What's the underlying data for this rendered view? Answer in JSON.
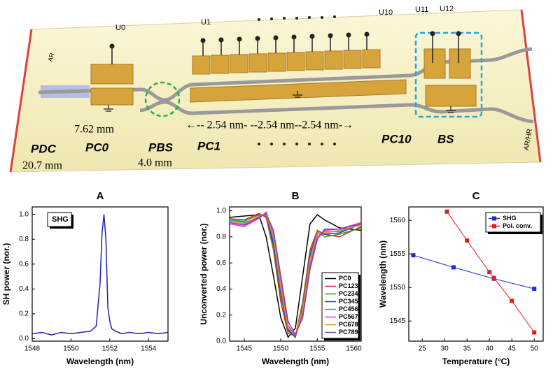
{
  "diagram": {
    "electrodes": [
      "U0",
      "U1",
      "U10",
      "U11",
      "U12"
    ],
    "facets": [
      "AR",
      "AR/HR"
    ],
    "sections": [
      "PDC",
      "PC0",
      "PBS",
      "PC1",
      "PC10",
      "BS"
    ],
    "lengths": [
      "7.62 mm",
      "20.7 mm",
      "4.0 mm"
    ],
    "period": "←-- 2.54  nm- --2.54  nm--2.54  nm-→"
  },
  "chart_data": [
    {
      "type": "line",
      "title": "A",
      "xlabel": "Wavelength (nm)",
      "ylabel": "SH power (nor.)",
      "x": [
        1548,
        1548.5,
        1549,
        1549.5,
        1550,
        1550.5,
        1551,
        1551.3,
        1551.5,
        1551.6,
        1551.7,
        1551.8,
        1551.9,
        1552.0,
        1552.1,
        1552.3,
        1552.6,
        1553,
        1553.5,
        1554,
        1554.5,
        1555
      ],
      "series": [
        {
          "name": "SHG",
          "color": "#1f23b0",
          "values": [
            0.04,
            0.05,
            0.03,
            0.05,
            0.04,
            0.05,
            0.06,
            0.1,
            0.45,
            0.85,
            1.0,
            0.8,
            0.25,
            0.14,
            0.08,
            0.06,
            0.04,
            0.05,
            0.04,
            0.05,
            0.04,
            0.05
          ]
        }
      ],
      "xlim": [
        1548,
        1555
      ],
      "xticks": [
        1548,
        1550,
        1552,
        1554
      ],
      "ylim": [
        -0.02,
        1.06
      ],
      "yticks": [
        {
          "value": 0,
          "label": "0.0"
        },
        {
          "value": 0.2,
          "label": "0.2"
        },
        {
          "value": 0.4,
          "label": "0.4"
        },
        {
          "value": 0.6,
          "label": "0.6"
        },
        {
          "value": 0.8,
          "label": "0.8"
        },
        {
          "value": 1,
          "label": "1.0"
        }
      ],
      "legend": "upper-left"
    },
    {
      "type": "line",
      "title": "B",
      "xlabel": "Wavelength (nm)",
      "ylabel": "Unconverted power (nor.)",
      "x": [
        1543,
        1545,
        1547,
        1548,
        1549,
        1550,
        1551,
        1552,
        1553,
        1554,
        1555,
        1556,
        1558,
        1561
      ],
      "series": [
        {
          "name": "PC0",
          "color": "#000000",
          "values": [
            0.95,
            0.96,
            0.97,
            0.8,
            0.5,
            0.18,
            0.03,
            0.1,
            0.5,
            0.9,
            0.97,
            0.93,
            0.87,
            0.85
          ]
        },
        {
          "name": "PC123",
          "color": "#e02020",
          "values": [
            0.94,
            0.93,
            0.98,
            0.95,
            0.7,
            0.3,
            0.06,
            0.04,
            0.3,
            0.7,
            0.85,
            0.82,
            0.8,
            0.88
          ]
        },
        {
          "name": "PC234",
          "color": "#2a9a2a",
          "values": [
            0.93,
            0.92,
            0.97,
            0.96,
            0.72,
            0.35,
            0.08,
            0.03,
            0.28,
            0.68,
            0.84,
            0.8,
            0.82,
            0.87
          ]
        },
        {
          "name": "PC345",
          "color": "#2030d0",
          "values": [
            0.92,
            0.9,
            0.96,
            0.97,
            0.75,
            0.38,
            0.09,
            0.03,
            0.25,
            0.65,
            0.83,
            0.82,
            0.83,
            0.9
          ]
        },
        {
          "name": "PC456",
          "color": "#10b0c8",
          "values": [
            0.93,
            0.91,
            0.95,
            0.98,
            0.78,
            0.4,
            0.1,
            0.04,
            0.22,
            0.62,
            0.82,
            0.84,
            0.84,
            0.9
          ]
        },
        {
          "name": "PC567",
          "color": "#e030e0",
          "values": [
            0.9,
            0.88,
            0.94,
            0.99,
            0.82,
            0.45,
            0.12,
            0.04,
            0.2,
            0.58,
            0.8,
            0.85,
            0.86,
            0.91
          ]
        },
        {
          "name": "PC678",
          "color": "#f08a10",
          "values": [
            0.92,
            0.9,
            0.96,
            0.97,
            0.8,
            0.42,
            0.1,
            0.05,
            0.24,
            0.63,
            0.83,
            0.83,
            0.85,
            0.89
          ]
        },
        {
          "name": "PC789",
          "color": "#8a3ab0",
          "values": [
            0.91,
            0.89,
            0.95,
            0.98,
            0.85,
            0.5,
            0.15,
            0.05,
            0.18,
            0.55,
            0.78,
            0.86,
            0.86,
            0.9
          ]
        }
      ],
      "xlim": [
        1543,
        1561
      ],
      "xticks": [
        1545,
        1550,
        1555,
        1560
      ],
      "ylim": [
        0,
        1.03
      ],
      "yticks": [
        {
          "value": 0,
          "label": "0.0"
        },
        {
          "value": 0.2,
          "label": "0.2"
        },
        {
          "value": 0.4,
          "label": "0.4"
        },
        {
          "value": 0.6,
          "label": "0.6"
        },
        {
          "value": 0.8,
          "label": "0.8"
        },
        {
          "value": 1,
          "label": "1.0"
        }
      ],
      "legend": "lower-right"
    },
    {
      "type": "line",
      "title": "C",
      "xlabel": "Temperature (°C)",
      "ylabel": "Wavelength (nm)",
      "markers": "square",
      "series": [
        {
          "name": "SHG",
          "color": "#2030d0",
          "x": [
            23,
            32,
            41,
            50
          ],
          "values": [
            1554.8,
            1553.0,
            1551.3,
            1549.8
          ]
        },
        {
          "name": "Pol. conv.",
          "color": "#e02020",
          "x": [
            30.5,
            35,
            40,
            41,
            45,
            50
          ],
          "values": [
            1561.3,
            1557,
            1552.3,
            1551.4,
            1548,
            1543.3
          ]
        }
      ],
      "xlim": [
        22,
        52
      ],
      "xticks": [
        25,
        30,
        35,
        40,
        45,
        50
      ],
      "ylim": [
        1542,
        1562
      ],
      "yticks": [
        1545,
        1550,
        1555,
        1560
      ],
      "legend": "upper-right"
    }
  ]
}
